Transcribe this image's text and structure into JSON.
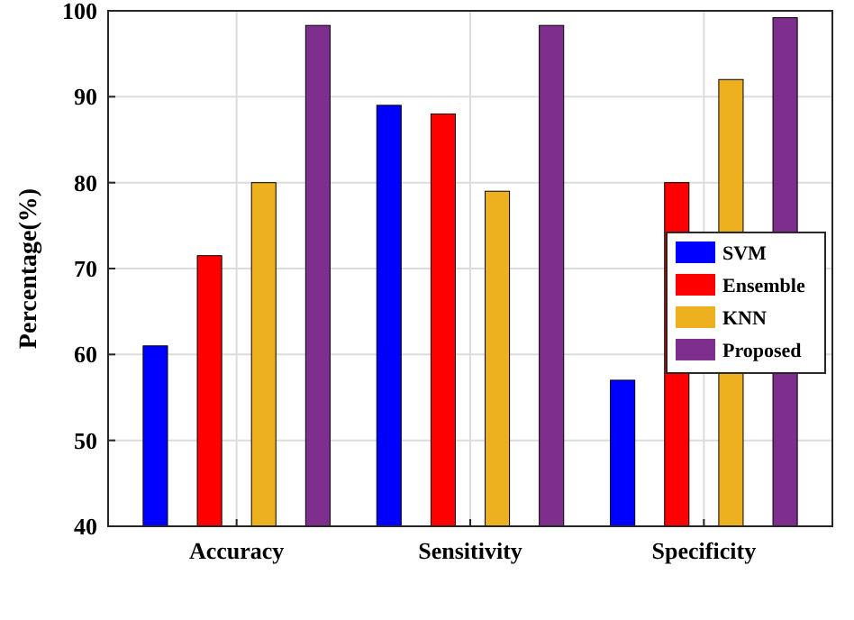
{
  "chart_data": {
    "type": "bar",
    "ylabel": "Percentage(%)",
    "categories": [
      "Accuracy",
      "Sensitivity",
      "Specificity"
    ],
    "series": [
      {
        "name": "SVM",
        "color": "#0000ff",
        "values": [
          61,
          89,
          57
        ]
      },
      {
        "name": "Ensemble",
        "color": "#ff0000",
        "values": [
          71.5,
          88,
          80
        ]
      },
      {
        "name": "KNN",
        "color": "#edb120",
        "values": [
          80,
          79,
          92
        ]
      },
      {
        "name": "Proposed",
        "color": "#7e2f8e",
        "values": [
          98.3,
          98.3,
          99.2
        ]
      }
    ],
    "ylim": [
      40,
      100
    ],
    "yticks": [
      40,
      50,
      60,
      70,
      80,
      90,
      100
    ],
    "grid": true,
    "legend": "right"
  }
}
